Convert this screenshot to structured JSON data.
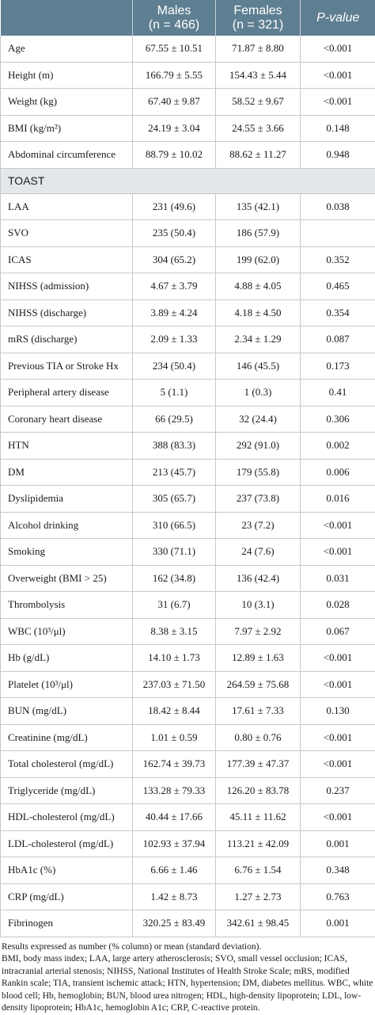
{
  "header": {
    "col1": "",
    "males_label": "Males",
    "males_n": "(n = 466)",
    "females_label": "Females",
    "females_n": "(n = 321)",
    "pvalue_label": "P-value"
  },
  "rows_top": [
    {
      "label": "Age",
      "males": "67.55 ± 10.51",
      "females": "71.87 ± 8.80",
      "p": "<0.001"
    },
    {
      "label": "Height (m)",
      "males": "166.79 ± 5.55",
      "females": "154.43 ± 5.44",
      "p": "<0.001"
    },
    {
      "label": "Weight (kg)",
      "males": "67.40 ± 9.87",
      "females": "58.52 ± 9.67",
      "p": "<0.001"
    },
    {
      "label": "BMI (kg/m²)",
      "males": "24.19 ± 3.04",
      "females": "24.55 ± 3.66",
      "p": "0.148"
    },
    {
      "label": "Abdominal circumference",
      "males": "88.79 ± 10.02",
      "females": "88.62 ± 11.27",
      "p": "0.948"
    }
  ],
  "group_label": "TOAST",
  "rows_bottom": [
    {
      "label": "LAA",
      "males": "231 (49.6)",
      "females": "135 (42.1)",
      "p": "0.038"
    },
    {
      "label": "SVO",
      "males": "235 (50.4)",
      "females": "186 (57.9)",
      "p": ""
    },
    {
      "label": "ICAS",
      "males": "304 (65.2)",
      "females": "199 (62.0)",
      "p": "0.352"
    },
    {
      "label": "NIHSS (admission)",
      "males": "4.67 ± 3.79",
      "females": "4.88 ± 4.05",
      "p": "0.465"
    },
    {
      "label": "NIHSS (discharge)",
      "males": "3.89 ± 4.24",
      "females": "4.18 ± 4.50",
      "p": "0.354"
    },
    {
      "label": "mRS (discharge)",
      "males": "2.09 ± 1.33",
      "females": "2.34 ± 1.29",
      "p": "0.087"
    },
    {
      "label": "Previous TIA or Stroke Hx",
      "males": "234 (50.4)",
      "females": "146 (45.5)",
      "p": "0.173"
    },
    {
      "label": "Peripheral artery disease",
      "males": "5 (1.1)",
      "females": "1 (0.3)",
      "p": "0.41"
    },
    {
      "label": "Coronary heart disease",
      "males": "66 (29.5)",
      "females": "32 (24.4)",
      "p": "0.306"
    },
    {
      "label": "HTN",
      "males": "388 (83.3)",
      "females": "292 (91.0)",
      "p": "0.002"
    },
    {
      "label": "DM",
      "males": "213 (45.7)",
      "females": "179 (55.8)",
      "p": "0.006"
    },
    {
      "label": "Dyslipidemia",
      "males": "305 (65.7)",
      "females": "237 (73.8)",
      "p": "0.016"
    },
    {
      "label": "Alcohol drinking",
      "males": "310 (66.5)",
      "females": "23 (7.2)",
      "p": "<0.001"
    },
    {
      "label": "Smoking",
      "males": "330 (71.1)",
      "females": "24 (7.6)",
      "p": "<0.001"
    },
    {
      "label": "Overweight (BMI > 25)",
      "males": "162 (34.8)",
      "females": "136 (42.4)",
      "p": "0.031"
    },
    {
      "label": "Thrombolysis",
      "males": "31 (6.7)",
      "females": "10 (3.1)",
      "p": "0.028"
    },
    {
      "label": "WBC (10³/μl)",
      "males": "8.38 ± 3.15",
      "females": "7.97 ± 2.92",
      "p": "0.067"
    },
    {
      "label": "Hb (g/dL)",
      "males": "14.10 ± 1.73",
      "females": "12.89 ± 1.63",
      "p": "<0.001"
    },
    {
      "label": "Platelet (10³/μl)",
      "males": "237.03 ± 71.50",
      "females": "264.59 ± 75.68",
      "p": "<0.001"
    },
    {
      "label": "BUN (mg/dL)",
      "males": "18.42 ± 8.44",
      "females": "17.61 ± 7.33",
      "p": "0.130"
    },
    {
      "label": "Creatinine (mg/dL)",
      "males": "1.01 ± 0.59",
      "females": "0.80 ± 0.76",
      "p": "<0.001"
    },
    {
      "label": "Total cholesterol (mg/dL)",
      "males": "162.74 ± 39.73",
      "females": "177.39 ± 47.37",
      "p": "<0.001"
    },
    {
      "label": "Triglyceride (mg/dL)",
      "males": "133.28 ± 79.33",
      "females": "126.20 ± 83.78",
      "p": "0.237"
    },
    {
      "label": "HDL-cholesterol (mg/dL)",
      "males": "40.44 ± 17.66",
      "females": "45.11 ± 11.62",
      "p": "<0.001"
    },
    {
      "label": "LDL-cholesterol (mg/dL)",
      "males": "102.93 ± 37.94",
      "females": "113.21 ± 42.09",
      "p": "0.001"
    },
    {
      "label": "HbA1c (%)",
      "males": "6.66 ± 1.46",
      "females": "6.76 ± 1.54",
      "p": "0.348"
    },
    {
      "label": "CRP (mg/dL)",
      "males": "1.42 ± 8.73",
      "females": "1.27 ± 2.73",
      "p": "0.763"
    },
    {
      "label": "Fibrinogen",
      "males": "320.25 ± 83.49",
      "females": "342.61 ± 98.45",
      "p": "0.001"
    }
  ],
  "notes": [
    "Results expressed as number (% column) or mean (standard deviation).",
    "BMI, body mass index; LAA, large artery atherosclerosis; SVO, small vessel occlusion; ICAS, intracranial arterial stenosis; NIHSS, National Institutes of Health Stroke Scale; mRS, modified Rankin scale; TIA, transient ischemic attack; HTN, hypertension; DM, diabetes mellitus. WBC, white blood cell; Hb, hemoglobin; BUN, blood urea nitrogen; HDL, high-density lipoprotein; LDL, low-density lipoprotein; HbA1c, hemoglobin A1c; CRP, C-reactive protein."
  ]
}
